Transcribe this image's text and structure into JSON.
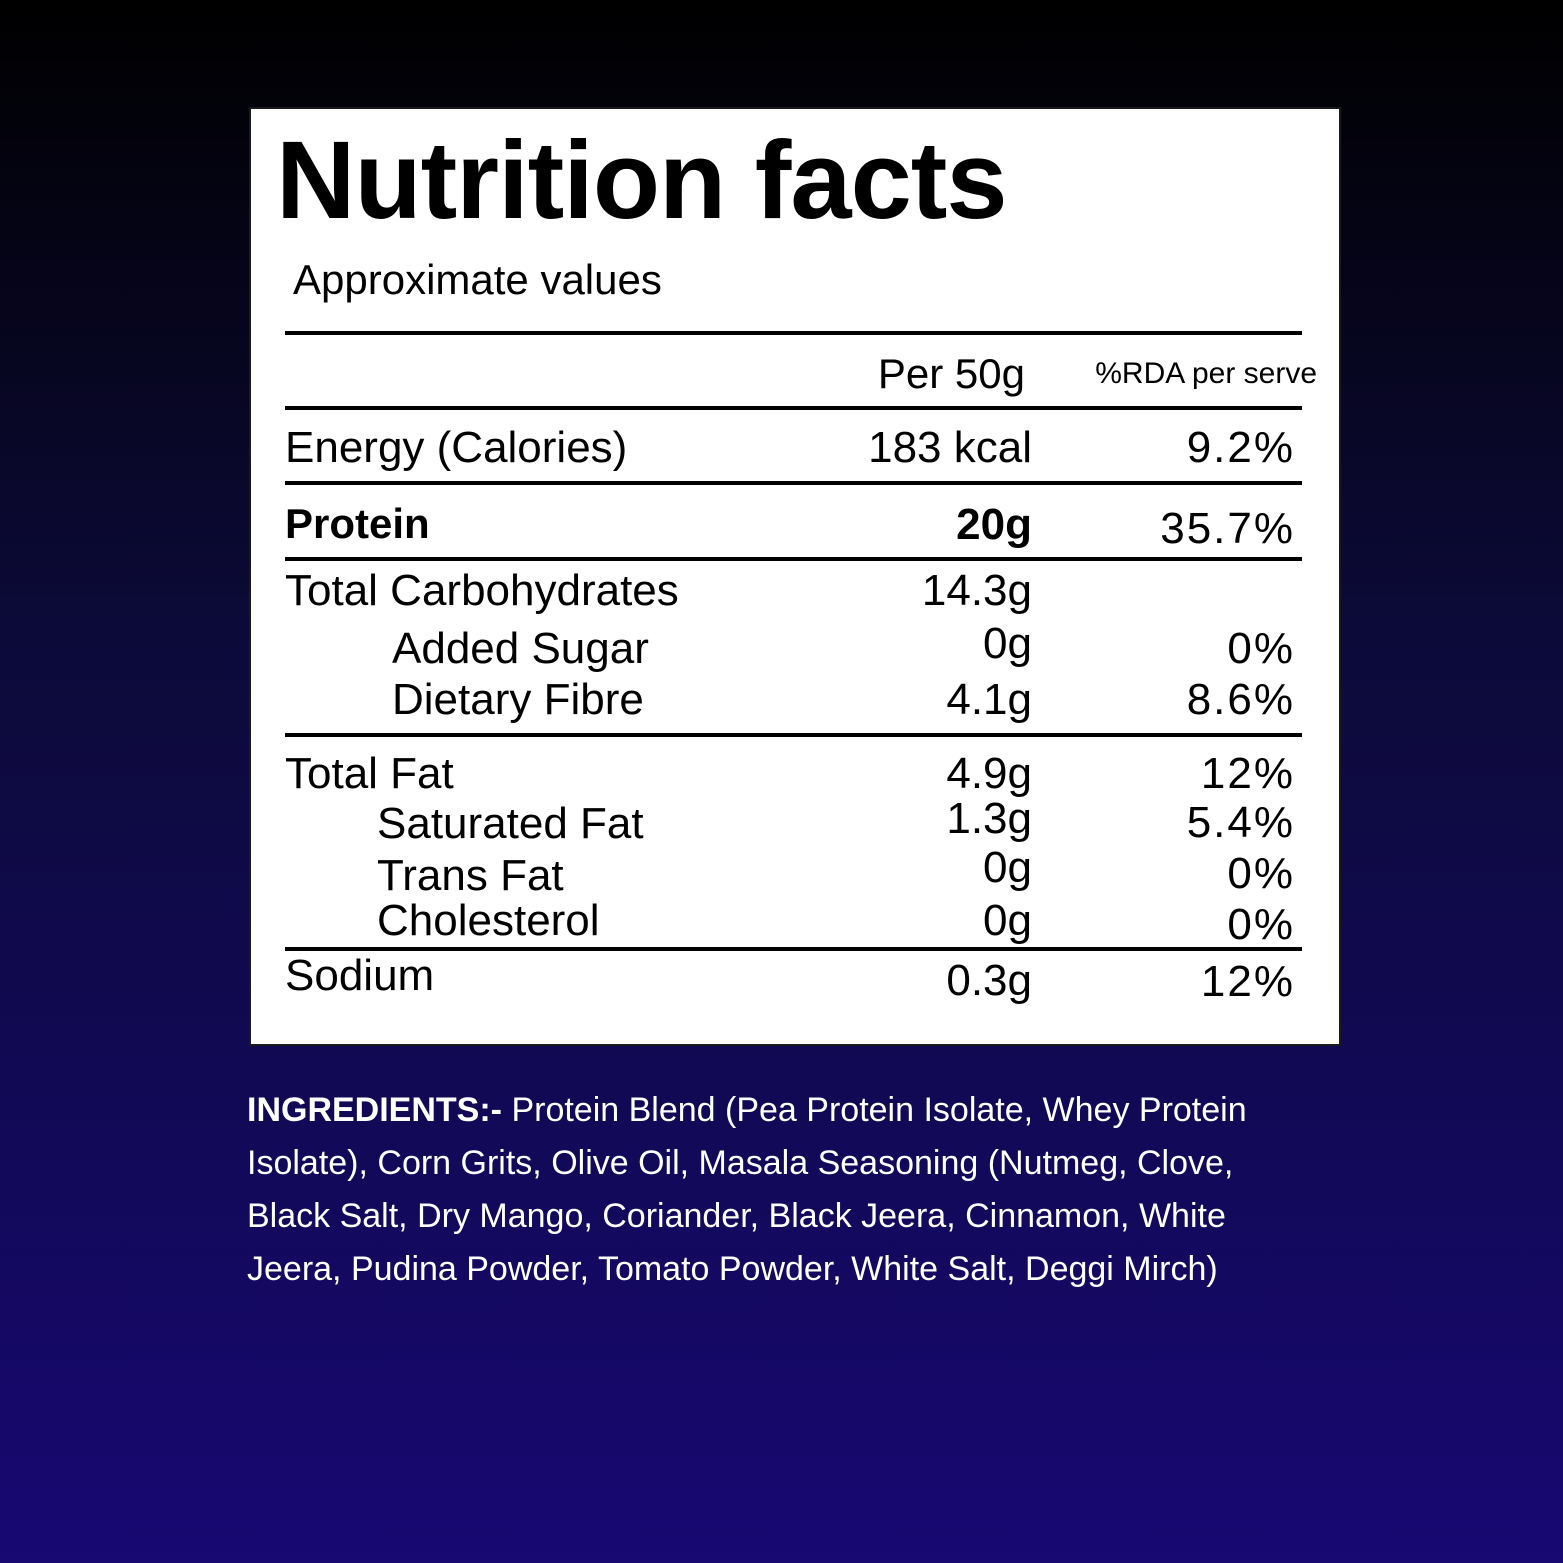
{
  "label": {
    "title": "Nutrition facts",
    "subtitle": "Approximate values",
    "col_amount": "Per 50g",
    "col_rda": "%RDA per serve",
    "rows": {
      "energy": {
        "name": "Energy (Calories)",
        "amount": "183 kcal",
        "rda": "9.2%"
      },
      "protein": {
        "name": "Protein",
        "amount": "20g",
        "rda": "35.7%"
      },
      "carbs": {
        "name": "Total Carbohydrates",
        "amount": "14.3g",
        "rda": ""
      },
      "sugar": {
        "name": "Added Sugar",
        "amount": "0g",
        "rda": "0%"
      },
      "fibre": {
        "name": "Dietary Fibre",
        "amount": "4.1g",
        "rda": "8.6%"
      },
      "fat": {
        "name": "Total Fat",
        "amount": "4.9g",
        "rda": "12%"
      },
      "satfat": {
        "name": "Saturated Fat",
        "amount": "1.3g",
        "rda": "5.4%"
      },
      "transfat": {
        "name": "Trans Fat",
        "amount": "0g",
        "rda": "0%"
      },
      "cholesterol": {
        "name": "Cholesterol",
        "amount": "0g",
        "rda": "0%"
      },
      "sodium": {
        "name": "Sodium",
        "amount": "0.3g",
        "rda": "12%"
      }
    }
  },
  "ingredients": {
    "label": "INGREDIENTS:-",
    "text": " Protein Blend (Pea Protein Isolate, Whey Protein Isolate), Corn Grits, Olive Oil, Masala Seasoning (Nutmeg, Clove, Black Salt, Dry Mango, Coriander, Black Jeera, Cinnamon, White Jeera, Pudina Powder, Tomato Powder, White Salt, Deggi Mirch)"
  }
}
